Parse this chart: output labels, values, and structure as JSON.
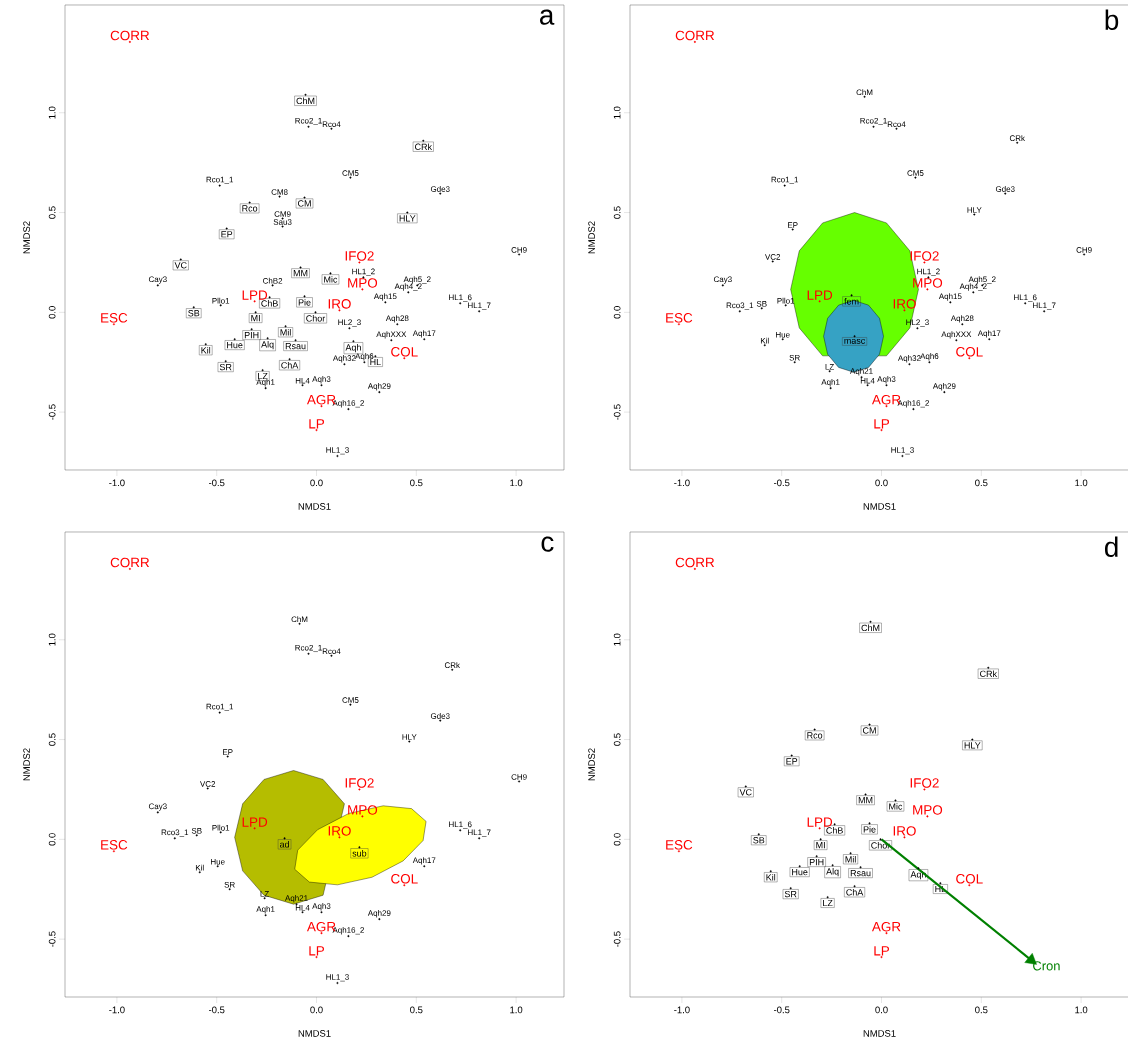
{
  "chart_data": [
    {
      "type": "scatter",
      "xlabel": "NMDS1",
      "ylabel": "NMDS2",
      "xlim": [
        -1.26,
        1.24
      ],
      "ylim": [
        -0.79,
        1.54
      ],
      "xticks": [
        {
          "value": -1,
          "label": "-1.0"
        },
        {
          "value": -0.5,
          "label": "-0.5"
        },
        {
          "value": 0,
          "label": "0.0"
        },
        {
          "value": 0.5,
          "label": "0.5"
        },
        {
          "value": 1,
          "label": "1.0"
        }
      ],
      "yticks": [
        {
          "value": -0.5,
          "label": "-0.5"
        },
        {
          "value": 0,
          "label": "0.0"
        },
        {
          "value": 0.5,
          "label": "0.5"
        },
        {
          "value": 1,
          "label": "1.0"
        }
      ],
      "annotations": [
        "a"
      ],
      "series": [
        {
          "marker": "none",
          "color": "#000000",
          "x": [
            -0.04,
            0.075,
            0.17,
            -0.485,
            0.62,
            -0.185,
            -0.17,
            -0.17,
            1.015,
            -0.795,
            0.235,
            0.505,
            0.46,
            0.345,
            0.72,
            0.815,
            -0.22,
            -0.48,
            0.165,
            0.405,
            0.375,
            0.54,
            0.24,
            0.14,
            -0.255,
            -0.07,
            0.025,
            0.315,
            0.16,
            0.105
          ],
          "values": [
            0.93,
            0.92,
            0.675,
            0.635,
            0.595,
            0.58,
            0.47,
            0.43,
            0.29,
            0.135,
            0.175,
            0.135,
            0.1,
            0.05,
            0.045,
            0.005,
            0.135,
            0.035,
            -0.08,
            -0.06,
            -0.14,
            -0.135,
            -0.25,
            -0.26,
            -0.38,
            -0.365,
            -0.365,
            -0.4,
            -0.485,
            -0.72
          ],
          "value_labels": [
            "Rco2_1",
            "Rco4",
            "CM5",
            "Rco1_1",
            "Gde3",
            "CM8",
            "CM9",
            "Sau3",
            "CH9",
            "Cay3",
            "HL1_2",
            "Aqh5_2",
            "Aqh4_2",
            "Aqh15",
            "HL1_6",
            "HL1_7",
            "ChB2",
            "Pllo1",
            "HL2_3",
            "Aqh28",
            "AqhXXX",
            "Aqh17",
            "Aqh6",
            "Aqh32",
            "Aqh1",
            "HL4",
            "Aqh3",
            "Aqh29",
            "Aqh16_2",
            "HL1_3"
          ]
        },
        {
          "marker": "square",
          "color": "#000000",
          "x": [
            -0.055,
            0.535,
            -0.335,
            -0.06,
            0.455,
            -0.45,
            -0.68,
            -0.08,
            0.07,
            -0.615,
            -0.235,
            -0.06,
            -0.005,
            -0.305,
            -0.41,
            -0.555,
            -0.325,
            -0.155,
            -0.245,
            -0.105,
            0.185,
            0.295,
            -0.455,
            -0.135,
            -0.27
          ],
          "values": [
            1.09,
            0.86,
            0.55,
            0.575,
            0.5,
            0.42,
            0.265,
            0.225,
            0.195,
            0.025,
            0.075,
            0.08,
            0.0,
            0.0,
            -0.135,
            -0.16,
            -0.085,
            -0.07,
            -0.13,
            -0.14,
            -0.145,
            -0.22,
            -0.245,
            -0.235,
            -0.29
          ],
          "value_labels": [
            "ChM",
            "CRk",
            "Rco",
            "CM",
            "HLY",
            "EP",
            "VC",
            "MM",
            "Mic",
            "SB",
            "ChB",
            "Pie",
            "Chor",
            "MI",
            "Hue",
            "Kil",
            "PIH",
            "Mil",
            "Alq",
            "Rsau",
            "Aqh",
            "HL",
            "SR",
            "ChA",
            "LZ"
          ]
        },
        {
          "marker": "none",
          "color": "#ff0000",
          "x": [
            -0.935,
            -1.015,
            0.215,
            0.23,
            -0.31,
            0.115,
            0.44,
            0.025,
            0.0
          ],
          "values": [
            1.355,
            -0.06,
            0.25,
            0.115,
            0.055,
            0.01,
            -0.23,
            -0.47,
            -0.59
          ],
          "value_labels": [
            "CORR",
            "ESC",
            "IFO2",
            "MPO",
            "LPD",
            "IRO",
            "COL",
            "AGR",
            "LP"
          ]
        }
      ]
    },
    {
      "type": "scatter",
      "xlabel": "NMDS1",
      "ylabel": "NMDS2",
      "xlim": [
        -1.26,
        1.24
      ],
      "ylim": [
        -0.79,
        1.54
      ],
      "xticks": [
        {
          "value": -1,
          "label": "-1.0"
        },
        {
          "value": -0.5,
          "label": "-0.5"
        },
        {
          "value": 0,
          "label": "0.0"
        },
        {
          "value": 0.5,
          "label": "0.5"
        },
        {
          "value": 1,
          "label": "1.0"
        }
      ],
      "yticks": [
        {
          "value": -0.5,
          "label": "-0.5"
        },
        {
          "value": 0,
          "label": "0.0"
        },
        {
          "value": 0.5,
          "label": "0.5"
        },
        {
          "value": 1,
          "label": "1.0"
        }
      ],
      "annotations": [
        "b"
      ],
      "series": [
        {
          "type": "area",
          "color": "#66ff00",
          "x": [
            0.185,
            0.142,
            0.025,
            -0.135,
            -0.295,
            -0.412,
            -0.455,
            -0.412,
            -0.295,
            0.025,
            0.142
          ],
          "values": [
            0.115,
            0.308,
            0.448,
            0.5,
            0.448,
            0.308,
            0.115,
            -0.078,
            -0.218,
            -0.218,
            -0.078
          ]
        },
        {
          "type": "area",
          "color": "#36a2c4",
          "x": [
            0.01,
            -0.01,
            -0.065,
            -0.14,
            -0.215,
            -0.27,
            -0.29,
            -0.27,
            -0.215,
            -0.14,
            -0.065,
            -0.01
          ],
          "values": [
            -0.12,
            -0.03,
            0.036,
            0.06,
            0.036,
            -0.03,
            -0.12,
            -0.21,
            -0.276,
            -0.3,
            -0.276,
            -0.21
          ]
        },
        {
          "marker": "none",
          "color": "#000000",
          "x": [
            -0.085,
            -0.04,
            0.075,
            0.68,
            0.17,
            -0.485,
            0.62,
            0.465,
            -0.445,
            1.015,
            -0.545,
            -0.795,
            0.235,
            0.505,
            0.46,
            0.345,
            0.72,
            0.815,
            -0.6,
            -0.71,
            -0.48,
            0.18,
            0.405,
            0.375,
            0.54,
            -0.495,
            -0.585,
            -0.435,
            -0.26,
            0.24,
            0.14,
            -0.1,
            -0.255,
            -0.07,
            0.025,
            0.315,
            0.16,
            0.105
          ],
          "values": [
            1.08,
            0.93,
            0.92,
            0.85,
            0.675,
            0.635,
            0.595,
            0.49,
            0.415,
            0.29,
            0.255,
            0.135,
            0.175,
            0.135,
            0.1,
            0.05,
            0.045,
            0.005,
            0.02,
            0.005,
            0.035,
            -0.08,
            -0.06,
            -0.14,
            -0.135,
            -0.135,
            -0.165,
            -0.25,
            -0.295,
            -0.25,
            -0.26,
            -0.325,
            -0.38,
            -0.365,
            -0.365,
            -0.4,
            -0.485,
            -0.72
          ],
          "value_labels": [
            "ChM",
            "Rco2_1",
            "Rco4",
            "CRk",
            "CM5",
            "Rco1_1",
            "Gde3",
            "HLY",
            "EP",
            "CH9",
            "VC2",
            "Cay3",
            "HL1_2",
            "Aqh5_2",
            "Aqh4_2",
            "Aqh15",
            "HL1_6",
            "HL1_7",
            "SB",
            "Rco3_1",
            "Pllo1",
            "HL2_3",
            "Aqh28",
            "AqhXXX",
            "Aqh17",
            "Hue",
            "Kil",
            "SR",
            "LZ",
            "Aqh6",
            "Aqh32",
            "Aqh21",
            "Aqh1",
            "HL4",
            "Aqh3",
            "Aqh29",
            "Aqh16_2",
            "HL1_3"
          ]
        },
        {
          "marker": "square",
          "color": "#000000",
          "x": [
            -0.15,
            -0.135
          ],
          "values": [
            0.085,
            -0.12
          ],
          "value_labels": [
            "fem",
            "masc"
          ]
        },
        {
          "marker": "none",
          "color": "#ff0000",
          "x": [
            -0.935,
            -1.015,
            0.215,
            0.23,
            -0.31,
            0.115,
            0.44,
            0.025,
            0.0
          ],
          "values": [
            1.355,
            -0.06,
            0.25,
            0.115,
            0.055,
            0.01,
            -0.23,
            -0.47,
            -0.59
          ],
          "value_labels": [
            "CORR",
            "ESC",
            "IFO2",
            "MPO",
            "LPD",
            "IRO",
            "COL",
            "AGR",
            "LP"
          ]
        }
      ]
    },
    {
      "type": "scatter",
      "xlabel": "NMDS1",
      "ylabel": "NMDS2",
      "xlim": [
        -1.26,
        1.24
      ],
      "ylim": [
        -0.79,
        1.54
      ],
      "xticks": [
        {
          "value": -1,
          "label": "-1.0"
        },
        {
          "value": -0.5,
          "label": "-0.5"
        },
        {
          "value": 0,
          "label": "0.0"
        },
        {
          "value": 0.5,
          "label": "0.5"
        },
        {
          "value": 1,
          "label": "1.0"
        }
      ],
      "yticks": [
        {
          "value": -0.5,
          "label": "-0.5"
        },
        {
          "value": 0,
          "label": "0.0"
        },
        {
          "value": 0.5,
          "label": "0.5"
        },
        {
          "value": 1,
          "label": "1.0"
        }
      ],
      "annotations": [
        "c"
      ],
      "series": [
        {
          "type": "area",
          "color": "#b5bd00",
          "x": [
            0.14,
            0.033,
            -0.115,
            -0.263,
            -0.37,
            -0.41,
            -0.37,
            -0.263,
            -0.115,
            0.033
          ],
          "values": [
            0.178,
            0.3,
            0.345,
            0.3,
            0.178,
            0.01,
            -0.158,
            -0.28,
            -0.325,
            -0.28
          ]
        },
        {
          "type": "area",
          "color": "#ffff00",
          "x": [
            0.549,
            0.476,
            0.334,
            0.162,
            0.005,
            -0.094,
            -0.109,
            -0.036,
            0.105,
            0.278,
            0.434,
            0.534
          ],
          "values": [
            0.09,
            0.154,
            0.168,
            0.13,
            0.048,
            -0.054,
            -0.15,
            -0.214,
            -0.228,
            -0.19,
            -0.108,
            -0.006
          ]
        },
        {
          "marker": "none",
          "color": "#000000",
          "x": [
            -0.085,
            -0.04,
            0.075,
            0.68,
            0.17,
            -0.485,
            0.62,
            0.465,
            -0.445,
            1.015,
            -0.545,
            -0.795,
            0.815,
            0.72,
            -0.6,
            -0.71,
            -0.48,
            0.54,
            -0.495,
            -0.585,
            -0.435,
            -0.26,
            -0.1,
            -0.255,
            -0.07,
            0.025,
            0.315,
            0.16,
            0.105
          ],
          "values": [
            1.08,
            0.93,
            0.92,
            0.85,
            0.675,
            0.635,
            0.595,
            0.49,
            0.415,
            0.29,
            0.255,
            0.135,
            0.005,
            0.045,
            0.02,
            0.005,
            0.035,
            -0.135,
            -0.135,
            -0.165,
            -0.25,
            -0.295,
            -0.325,
            -0.38,
            -0.365,
            -0.365,
            -0.4,
            -0.485,
            -0.72
          ],
          "value_labels": [
            "ChM",
            "Rco2_1",
            "Rco4",
            "CRk",
            "CM5",
            "Rco1_1",
            "Gde3",
            "HLY",
            "EP",
            "CH9",
            "VC2",
            "Cay3",
            "HL1_7",
            "HL1_6",
            "SB",
            "Rco3_1",
            "Pllo1",
            "Aqh17",
            "Hue",
            "Kil",
            "SR",
            "LZ",
            "Aqh21",
            "Aqh1",
            "HL4",
            "Aqh3",
            "Aqh29",
            "Aqh16_2",
            "HL1_3"
          ]
        },
        {
          "marker": "square",
          "color": "#000000",
          "x": [
            -0.16,
            0.215
          ],
          "values": [
            0.005,
            -0.04
          ],
          "value_labels": [
            "ad",
            "sub"
          ]
        },
        {
          "marker": "none",
          "color": "#ff0000",
          "x": [
            -0.935,
            -1.015,
            0.215,
            0.23,
            -0.31,
            0.115,
            0.44,
            0.025,
            0.0
          ],
          "values": [
            1.355,
            -0.06,
            0.25,
            0.115,
            0.055,
            0.01,
            -0.23,
            -0.47,
            -0.59
          ],
          "value_labels": [
            "CORR",
            "ESC",
            "IFO2",
            "MPO",
            "LPD",
            "IRO",
            "COL",
            "AGR",
            "LP"
          ]
        }
      ]
    },
    {
      "type": "scatter",
      "xlabel": "NMDS1",
      "ylabel": "NMDS2",
      "xlim": [
        -1.26,
        1.24
      ],
      "ylim": [
        -0.79,
        1.54
      ],
      "xticks": [
        {
          "value": -1,
          "label": "-1.0"
        },
        {
          "value": -0.5,
          "label": "-0.5"
        },
        {
          "value": 0,
          "label": "0.0"
        },
        {
          "value": 0.5,
          "label": "0.5"
        },
        {
          "value": 1,
          "label": "1.0"
        }
      ],
      "yticks": [
        {
          "value": -0.5,
          "label": "-0.5"
        },
        {
          "value": 0,
          "label": "0.0"
        },
        {
          "value": 0.5,
          "label": "0.5"
        },
        {
          "value": 1,
          "label": "1.0"
        }
      ],
      "annotations": [
        "d"
      ],
      "series": [
        {
          "marker": "square",
          "color": "#000000",
          "x": [
            -0.055,
            0.535,
            -0.335,
            -0.06,
            0.455,
            -0.45,
            -0.68,
            -0.08,
            0.07,
            -0.615,
            -0.235,
            -0.06,
            -0.005,
            -0.305,
            -0.41,
            -0.555,
            -0.325,
            -0.155,
            -0.245,
            -0.105,
            0.185,
            0.295,
            -0.455,
            -0.135,
            -0.27
          ],
          "values": [
            1.09,
            0.86,
            0.55,
            0.575,
            0.5,
            0.42,
            0.265,
            0.225,
            0.195,
            0.025,
            0.075,
            0.08,
            0.0,
            0.0,
            -0.135,
            -0.16,
            -0.085,
            -0.07,
            -0.13,
            -0.14,
            -0.145,
            -0.22,
            -0.245,
            -0.235,
            -0.29
          ],
          "value_labels": [
            "ChM",
            "CRk",
            "Rco",
            "CM",
            "HLY",
            "EP",
            "VC",
            "MM",
            "Mic",
            "SB",
            "ChB",
            "Pie",
            "Chor",
            "MI",
            "Hue",
            "Kil",
            "PIH",
            "Mil",
            "Alq",
            "Rsau",
            "Aqh",
            "HL",
            "SR",
            "ChA",
            "LZ"
          ]
        },
        {
          "marker": "none",
          "color": "#ff0000",
          "x": [
            -0.935,
            -1.015,
            0.215,
            0.23,
            -0.31,
            0.115,
            0.44,
            0.025,
            0.0
          ],
          "values": [
            1.355,
            -0.06,
            0.25,
            0.115,
            0.055,
            0.01,
            -0.23,
            -0.47,
            -0.59
          ],
          "value_labels": [
            "CORR",
            "ESC",
            "IFO2",
            "MPO",
            "LPD",
            "IRO",
            "COL",
            "AGR",
            "LP"
          ]
        },
        {
          "marker": "triangle",
          "color": "#008000",
          "x": [
            0.75
          ],
          "values": [
            -0.605
          ],
          "value_labels": [
            "Cron"
          ]
        }
      ]
    }
  ]
}
